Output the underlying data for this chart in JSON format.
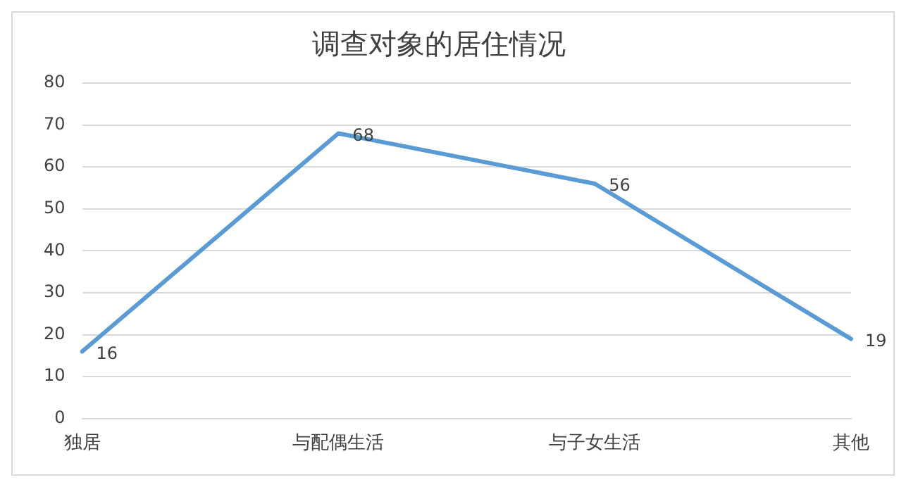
{
  "chart_data": {
    "type": "line",
    "title": "调查对象的居住情况",
    "categories": [
      "独居",
      "与配偶生活",
      "与子女生活",
      "其他"
    ],
    "series": [
      {
        "color": "#5b9bd5",
        "values": [
          16,
          68,
          56,
          19
        ]
      }
    ],
    "ylim": [
      0,
      80
    ],
    "yticks": [
      0,
      10,
      20,
      30,
      40,
      50,
      60,
      70,
      80
    ],
    "grid": "y",
    "legend": false,
    "marker": "none",
    "line_style": "solid",
    "data_labels": true
  }
}
